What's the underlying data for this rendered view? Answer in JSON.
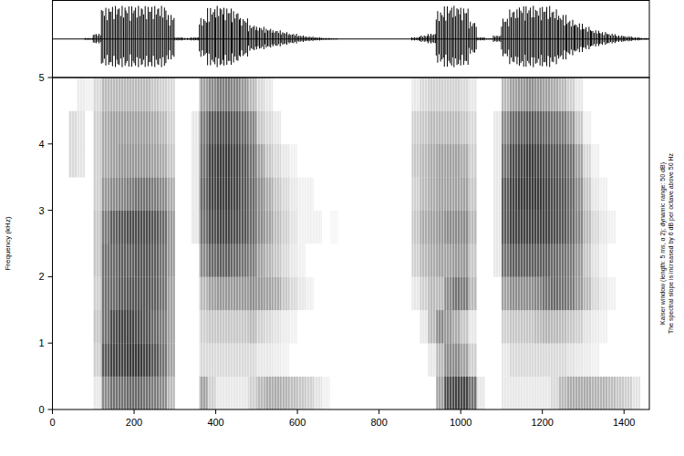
{
  "chart_data": {
    "type": "spectrogram",
    "y_label": "Frequency (kHz)",
    "notes": [
      "Kaiser window (length: 5 ms, α 2); dynamic range: 50 dB)",
      "The spectral slope is increased by 6 dB per octave above 50 Hz"
    ],
    "color": "#000000",
    "xlim": [
      0,
      1462
    ],
    "ylim": [
      0,
      5
    ],
    "xticks": [
      0,
      200,
      400,
      600,
      800,
      1000,
      1200,
      1400
    ],
    "yticks": [
      0,
      1,
      2,
      3,
      4,
      5
    ],
    "time_bins": [
      0,
      20,
      40,
      60,
      80,
      100,
      120,
      140,
      160,
      180,
      200,
      220,
      240,
      260,
      280,
      300,
      320,
      340,
      360,
      380,
      400,
      420,
      440,
      460,
      480,
      500,
      520,
      540,
      560,
      580,
      600,
      620,
      640,
      660,
      680,
      700,
      720,
      740,
      760,
      780,
      800,
      820,
      840,
      860,
      880,
      900,
      920,
      940,
      960,
      980,
      1000,
      1020,
      1040,
      1060,
      1080,
      1100,
      1120,
      1140,
      1160,
      1180,
      1200,
      1220,
      1240,
      1260,
      1280,
      1300,
      1320,
      1340,
      1360,
      1380,
      1400,
      1420,
      1440,
      1460
    ],
    "frequency_bins": [
      0,
      0.5,
      1,
      1.5,
      2,
      2.5,
      3,
      3.5,
      4,
      4.5,
      5
    ],
    "cells_range": [
      0,
      50
    ],
    "cells": [
      [
        0,
        0,
        0,
        0,
        0,
        0,
        0,
        0,
        0,
        0
      ],
      [
        0,
        0,
        0,
        0,
        0,
        0,
        0,
        0,
        0,
        0
      ],
      [
        0,
        0,
        0,
        0,
        0,
        0,
        0,
        8,
        8,
        0
      ],
      [
        0,
        0,
        0,
        0,
        0,
        0,
        0,
        6,
        6,
        4
      ],
      [
        0,
        0,
        0,
        0,
        0,
        0,
        0,
        0,
        0,
        3
      ],
      [
        5,
        10,
        12,
        10,
        12,
        12,
        10,
        10,
        10,
        8
      ],
      [
        25,
        35,
        30,
        30,
        30,
        28,
        22,
        18,
        18,
        15
      ],
      [
        30,
        40,
        38,
        32,
        32,
        34,
        25,
        20,
        20,
        15
      ],
      [
        30,
        40,
        40,
        35,
        34,
        36,
        26,
        22,
        20,
        15
      ],
      [
        32,
        42,
        40,
        36,
        34,
        38,
        28,
        22,
        20,
        15
      ],
      [
        32,
        42,
        38,
        36,
        36,
        38,
        30,
        22,
        20,
        15
      ],
      [
        30,
        40,
        36,
        36,
        36,
        38,
        30,
        22,
        20,
        15
      ],
      [
        28,
        36,
        32,
        34,
        34,
        36,
        28,
        20,
        18,
        12
      ],
      [
        25,
        30,
        28,
        30,
        30,
        32,
        25,
        18,
        15,
        10
      ],
      [
        15,
        20,
        20,
        20,
        22,
        22,
        18,
        12,
        10,
        8
      ],
      [
        0,
        0,
        0,
        0,
        0,
        0,
        0,
        0,
        0,
        0
      ],
      [
        0,
        0,
        0,
        0,
        0,
        0,
        0,
        0,
        0,
        0
      ],
      [
        0,
        0,
        0,
        0,
        0,
        5,
        5,
        5,
        5,
        0
      ],
      [
        20,
        8,
        10,
        15,
        25,
        30,
        32,
        30,
        28,
        20
      ],
      [
        10,
        8,
        12,
        20,
        32,
        38,
        40,
        40,
        36,
        25
      ],
      [
        5,
        8,
        12,
        22,
        34,
        40,
        42,
        42,
        38,
        28
      ],
      [
        5,
        8,
        12,
        22,
        34,
        40,
        42,
        42,
        38,
        28
      ],
      [
        5,
        8,
        12,
        22,
        32,
        38,
        40,
        40,
        36,
        26
      ],
      [
        5,
        8,
        12,
        22,
        30,
        36,
        36,
        36,
        32,
        22
      ],
      [
        10,
        8,
        15,
        24,
        28,
        32,
        32,
        30,
        26,
        15
      ],
      [
        15,
        5,
        10,
        22,
        20,
        25,
        24,
        20,
        12,
        8
      ],
      [
        18,
        5,
        8,
        20,
        16,
        20,
        18,
        12,
        8,
        5
      ],
      [
        18,
        4,
        6,
        18,
        12,
        14,
        12,
        8,
        5,
        0
      ],
      [
        16,
        3,
        4,
        12,
        8,
        10,
        8,
        5,
        0,
        0
      ],
      [
        14,
        0,
        3,
        8,
        5,
        6,
        5,
        3,
        0,
        0
      ],
      [
        12,
        0,
        0,
        5,
        3,
        3,
        3,
        0,
        0,
        0
      ],
      [
        10,
        0,
        0,
        3,
        0,
        3,
        3,
        0,
        0,
        0
      ],
      [
        6,
        0,
        0,
        0,
        0,
        3,
        0,
        0,
        0,
        0
      ],
      [
        3,
        0,
        0,
        0,
        0,
        0,
        0,
        0,
        0,
        0
      ],
      [
        0,
        0,
        0,
        0,
        0,
        2,
        0,
        0,
        0,
        0
      ],
      [
        0,
        0,
        0,
        0,
        0,
        0,
        0,
        0,
        0,
        0
      ],
      [
        0,
        0,
        0,
        0,
        0,
        0,
        0,
        0,
        0,
        0
      ],
      [
        0,
        0,
        0,
        0,
        0,
        0,
        0,
        0,
        0,
        0
      ],
      [
        0,
        0,
        0,
        0,
        0,
        0,
        0,
        0,
        0,
        0
      ],
      [
        0,
        0,
        0,
        0,
        0,
        0,
        0,
        0,
        0,
        0
      ],
      [
        0,
        0,
        0,
        0,
        0,
        0,
        0,
        0,
        0,
        0
      ],
      [
        0,
        0,
        0,
        0,
        0,
        0,
        0,
        0,
        0,
        0
      ],
      [
        0,
        0,
        0,
        0,
        0,
        0,
        0,
        0,
        0,
        0
      ],
      [
        0,
        0,
        0,
        0,
        0,
        0,
        0,
        0,
        0,
        0
      ],
      [
        0,
        0,
        0,
        5,
        10,
        12,
        10,
        12,
        10,
        5
      ],
      [
        0,
        0,
        5,
        10,
        15,
        18,
        15,
        15,
        12,
        8
      ],
      [
        0,
        5,
        15,
        15,
        18,
        20,
        18,
        18,
        15,
        10
      ],
      [
        20,
        15,
        25,
        15,
        20,
        22,
        20,
        20,
        15,
        10
      ],
      [
        38,
        25,
        22,
        25,
        20,
        25,
        20,
        20,
        15,
        10
      ],
      [
        40,
        25,
        18,
        30,
        22,
        25,
        20,
        20,
        15,
        10
      ],
      [
        40,
        20,
        12,
        28,
        22,
        25,
        20,
        18,
        12,
        8
      ],
      [
        30,
        10,
        5,
        15,
        12,
        15,
        12,
        10,
        8,
        5
      ],
      [
        5,
        0,
        0,
        0,
        0,
        0,
        0,
        0,
        0,
        0
      ],
      [
        0,
        0,
        0,
        0,
        0,
        0,
        0,
        0,
        0,
        0
      ],
      [
        0,
        0,
        0,
        0,
        5,
        5,
        5,
        5,
        5,
        0
      ],
      [
        5,
        5,
        10,
        20,
        30,
        35,
        35,
        30,
        25,
        15
      ],
      [
        5,
        8,
        12,
        24,
        34,
        40,
        40,
        38,
        32,
        20
      ],
      [
        5,
        8,
        12,
        24,
        34,
        40,
        42,
        40,
        34,
        22
      ],
      [
        5,
        8,
        12,
        24,
        34,
        40,
        42,
        42,
        36,
        24
      ],
      [
        5,
        8,
        14,
        26,
        34,
        40,
        42,
        40,
        34,
        22
      ],
      [
        5,
        8,
        16,
        30,
        34,
        40,
        40,
        38,
        32,
        20
      ],
      [
        8,
        8,
        15,
        32,
        32,
        38,
        38,
        36,
        30,
        18
      ],
      [
        15,
        8,
        14,
        30,
        30,
        36,
        36,
        34,
        28,
        15
      ],
      [
        18,
        6,
        12,
        28,
        28,
        32,
        32,
        30,
        22,
        10
      ],
      [
        18,
        5,
        10,
        22,
        22,
        26,
        24,
        20,
        12,
        5
      ],
      [
        18,
        4,
        6,
        15,
        12,
        15,
        12,
        8,
        3,
        0
      ],
      [
        16,
        3,
        4,
        8,
        6,
        8,
        5,
        3,
        0,
        0
      ],
      [
        16,
        0,
        3,
        5,
        3,
        5,
        3,
        0,
        0,
        0
      ],
      [
        14,
        0,
        0,
        3,
        0,
        3,
        0,
        0,
        0,
        0
      ],
      [
        12,
        0,
        0,
        0,
        0,
        0,
        0,
        0,
        0,
        0
      ],
      [
        10,
        0,
        0,
        0,
        0,
        0,
        0,
        0,
        0,
        0
      ],
      [
        6,
        0,
        0,
        0,
        0,
        0,
        0,
        0,
        0,
        0
      ],
      [
        0,
        0,
        0,
        0,
        0,
        0,
        0,
        0,
        0,
        0
      ]
    ],
    "waveform": {
      "ylim": [
        -1,
        1
      ],
      "amplitude": [
        0,
        0,
        0,
        0,
        0.03,
        0.15,
        0.9,
        0.95,
        0.95,
        0.95,
        0.95,
        0.95,
        0.95,
        0.95,
        0.7,
        0.05,
        0.03,
        0.05,
        0.6,
        0.9,
        0.95,
        0.9,
        0.8,
        0.6,
        0.4,
        0.35,
        0.3,
        0.25,
        0.2,
        0.15,
        0.1,
        0.07,
        0.05,
        0.03,
        0.02,
        0,
        0,
        0,
        0,
        0,
        0,
        0,
        0,
        0,
        0.05,
        0.1,
        0.15,
        0.8,
        0.95,
        0.95,
        0.9,
        0.5,
        0.05,
        0.02,
        0.1,
        0.6,
        0.85,
        0.95,
        0.95,
        0.9,
        0.95,
        0.85,
        0.7,
        0.55,
        0.45,
        0.35,
        0.25,
        0.2,
        0.15,
        0.1,
        0.08,
        0.05,
        0.03
      ]
    }
  }
}
